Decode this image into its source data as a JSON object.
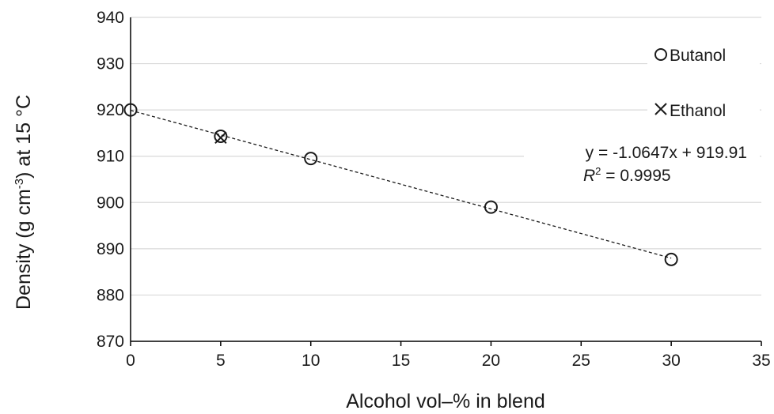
{
  "chart_data": {
    "type": "scatter",
    "xlabel": "Alcohol vol–% in blend",
    "ylabel_main": "Density (g cm",
    "ylabel_sup": "-3",
    "ylabel_tail": ") at 15 °C",
    "xlim": [
      0,
      35
    ],
    "ylim": [
      870,
      940
    ],
    "x_ticks": [
      0,
      5,
      10,
      15,
      20,
      25,
      30,
      35
    ],
    "y_ticks": [
      870,
      880,
      890,
      900,
      910,
      920,
      930,
      940
    ],
    "grid": "horizontal",
    "legend_position": "top-right",
    "series": [
      {
        "name": "Butanol",
        "marker": "circle",
        "points": [
          {
            "x": 0,
            "y": 920.0
          },
          {
            "x": 5,
            "y": 914.3
          },
          {
            "x": 10,
            "y": 909.5
          },
          {
            "x": 20,
            "y": 899.0
          },
          {
            "x": 30,
            "y": 887.7
          }
        ]
      },
      {
        "name": "Ethanol",
        "marker": "x",
        "points": [
          {
            "x": 5,
            "y": 914.0
          }
        ]
      }
    ],
    "trendline": {
      "slope": -1.0647,
      "intercept": 919.91,
      "x_range": [
        0,
        30
      ],
      "style": "dashed",
      "equation_label": "y = -1.0647x + 919.91",
      "r2_label_symbol": "R",
      "r2_label_sup": "2",
      "r2_label_value": " = 0.9995"
    }
  }
}
